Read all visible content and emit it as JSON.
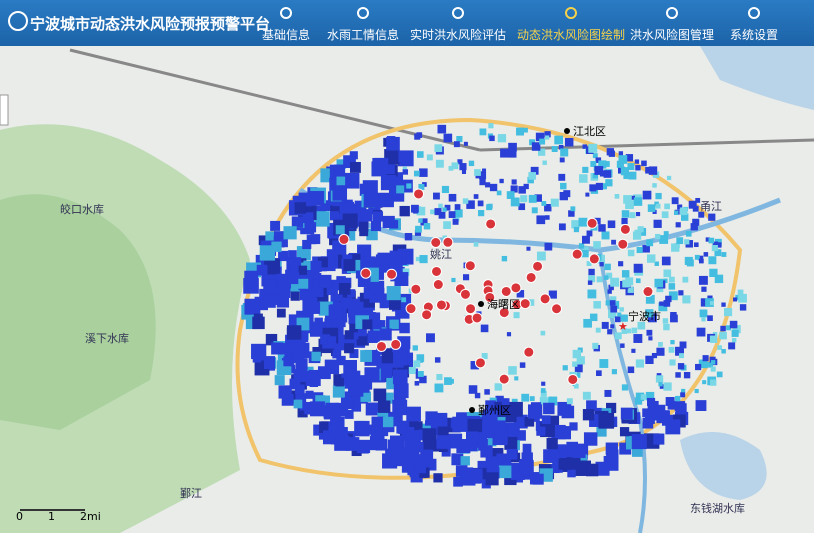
{
  "header": {
    "title": "宁波城市动态洪水风险预报预警平台",
    "nav": [
      "基础信息",
      "水雨工情信息",
      "实时洪水风险评估",
      "动态洪水风险图绘制",
      "洪水风险图管理",
      "系统设置"
    ]
  },
  "map": {
    "districts": [
      "江北区",
      "海曙区",
      "鄞州区",
      "宁波市"
    ],
    "reservoirs": [
      "皎口水库",
      "溪下水库",
      "东钱湖水库"
    ],
    "rivers": [
      "鄞江",
      "姚江",
      "甬江"
    ],
    "scale": [
      "0",
      "1",
      "2mi"
    ]
  }
}
